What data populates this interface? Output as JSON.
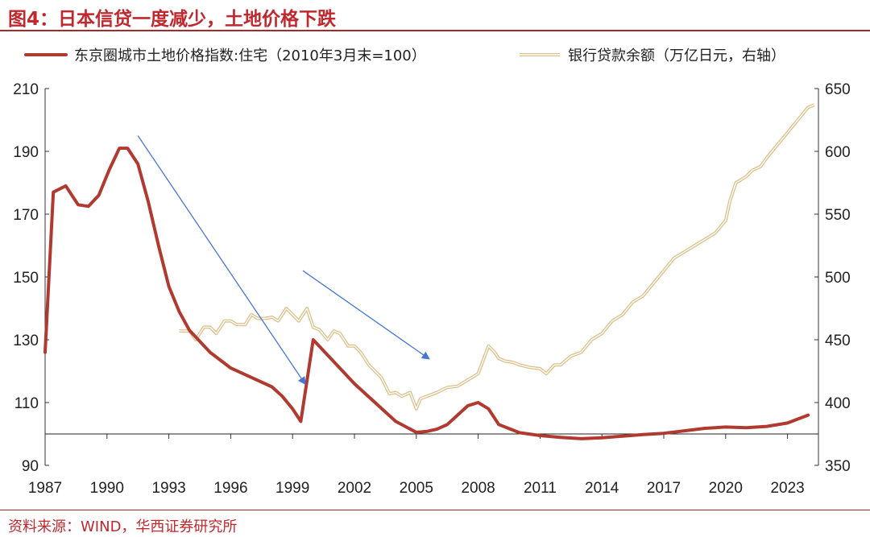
{
  "header": {
    "title": "图4：日本信贷一度减少，土地价格下跌"
  },
  "footer": {
    "source": "资料来源：WIND，华西证券研究所"
  },
  "colors": {
    "land": "#b13a30",
    "loan": "#dcc089",
    "arrow": "#4477d6",
    "title": "#c0282d"
  },
  "chart_data": {
    "type": "line",
    "title": "图4：日本信贷一度减少，土地价格下跌",
    "x_ticks": [
      "1987",
      "1990",
      "1993",
      "1996",
      "1999",
      "2002",
      "2005",
      "2008",
      "2011",
      "2014",
      "2017",
      "2020",
      "2023"
    ],
    "xlim": [
      1987,
      2024.5
    ],
    "y_left": {
      "ticks": [
        "210",
        "190",
        "170",
        "150",
        "130",
        "110",
        "90"
      ],
      "lim": [
        90,
        210
      ]
    },
    "y_right": {
      "ticks": [
        "650",
        "600",
        "550",
        "500",
        "450",
        "400",
        "350"
      ],
      "lim": [
        350,
        650
      ]
    },
    "legend_position": "top",
    "grid": false,
    "series": [
      {
        "name": "东京圈城市土地价格指数:住宅（2010年3月末=100）",
        "axis": "left",
        "x": [
          1987.0,
          1987.4,
          1988.0,
          1988.6,
          1989.1,
          1989.6,
          1990.1,
          1990.6,
          1991.0,
          1991.5,
          1992.0,
          1992.5,
          1993.0,
          1993.5,
          1994.0,
          1995.0,
          1996.0,
          1997.0,
          1998.0,
          1998.5,
          1999.0,
          1999.4,
          2000.0,
          2001.0,
          2002.0,
          2003.0,
          2004.0,
          2005.0,
          2005.5,
          2006.0,
          2006.5,
          2007.0,
          2007.5,
          2008.0,
          2008.5,
          2009.0,
          2010.0,
          2011.0,
          2012.0,
          2013.0,
          2014.0,
          2015.0,
          2016.0,
          2017.0,
          2018.0,
          2019.0,
          2020.0,
          2021.0,
          2022.0,
          2023.0,
          2024.0
        ],
        "y": [
          126,
          177,
          179,
          173,
          172.5,
          176,
          184,
          191,
          191,
          186,
          174,
          160,
          147,
          139,
          133,
          126,
          121,
          118,
          115,
          112,
          108,
          104,
          130,
          123,
          116,
          110,
          104,
          100.5,
          100.8,
          101.5,
          103,
          106,
          109,
          110,
          108,
          103,
          100.4,
          99.5,
          98.9,
          98.5,
          98.8,
          99.3,
          99.8,
          100.2,
          101,
          101.8,
          102.2,
          102,
          102.4,
          103.5,
          106
        ]
      },
      {
        "name": "银行贷款余额（万亿日元，右轴）",
        "axis": "right",
        "x": [
          1993.5,
          1994.0,
          1994.3,
          1994.7,
          1995.0,
          1995.3,
          1995.7,
          1996.0,
          1996.3,
          1996.7,
          1997.0,
          1997.3,
          1997.7,
          1998.0,
          1998.3,
          1998.7,
          1999.0,
          1999.3,
          1999.7,
          2000.0,
          2000.3,
          2000.7,
          2001.0,
          2001.3,
          2001.7,
          2002.0,
          2002.3,
          2002.7,
          2003.0,
          2003.3,
          2003.7,
          2004.0,
          2004.3,
          2004.7,
          2005.0,
          2005.2,
          2005.5,
          2006.0,
          2006.5,
          2007.0,
          2007.5,
          2008.0,
          2008.5,
          2008.8,
          2009.0,
          2009.3,
          2009.7,
          2010.0,
          2010.5,
          2011.0,
          2011.3,
          2011.7,
          2012.0,
          2012.5,
          2013.0,
          2013.5,
          2014.0,
          2014.5,
          2015.0,
          2015.5,
          2016.0,
          2016.5,
          2017.0,
          2017.5,
          2018.0,
          2018.5,
          2019.0,
          2019.5,
          2020.0,
          2020.2,
          2020.5,
          2021.0,
          2021.3,
          2021.7,
          2022.0,
          2022.5,
          2023.0,
          2023.5,
          2024.0,
          2024.3
        ],
        "y": [
          457,
          457,
          450,
          460,
          460,
          455,
          465,
          465,
          462,
          462,
          470,
          467,
          467,
          468,
          465,
          475,
          470,
          465,
          475,
          460,
          458,
          450,
          457,
          455,
          445,
          445,
          440,
          430,
          425,
          420,
          407,
          408,
          405,
          408,
          395,
          403,
          405,
          408,
          412,
          413,
          418,
          423,
          445,
          440,
          435,
          433,
          432,
          430,
          428,
          427,
          423,
          430,
          430,
          437,
          440,
          450,
          455,
          465,
          470,
          480,
          485,
          495,
          505,
          515,
          520,
          525,
          530,
          535,
          545,
          560,
          575,
          580,
          585,
          588,
          595,
          605,
          615,
          625,
          635,
          637
        ]
      }
    ],
    "annotations": [
      {
        "type": "arrow",
        "from": [
          1991.5,
          195
        ],
        "to": [
          1999.6,
          116
        ]
      },
      {
        "type": "arrow",
        "from": [
          1999.5,
          152
        ],
        "to": [
          2005.6,
          124
        ]
      }
    ]
  }
}
